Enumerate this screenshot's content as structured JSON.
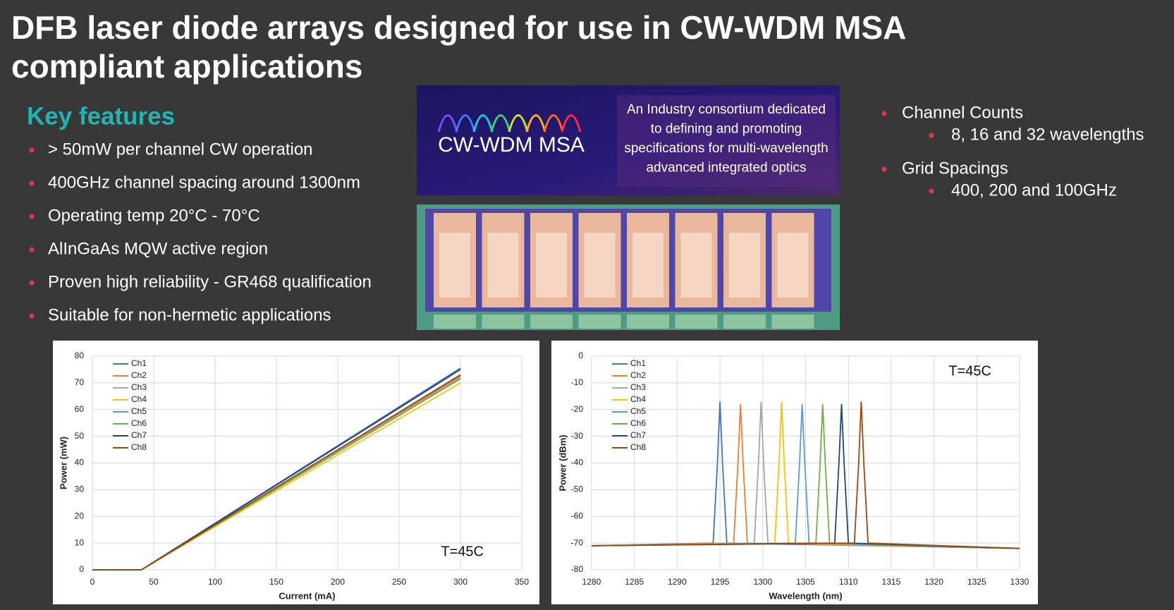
{
  "title": "DFB laser diode arrays designed for use in CW-WDM MSA compliant applications",
  "features": {
    "heading": "Key features",
    "items": [
      "> 50mW per channel CW operation",
      "400GHz channel spacing around 1300nm",
      "Operating temp 20°C - 70°C",
      "AlInGaAs MQW active region",
      "Proven high reliability - GR468 qualification",
      "Suitable for non-hermetic applications"
    ]
  },
  "specs": [
    {
      "text": "Channel Counts",
      "sub": "8, 16 and 32 wavelengths"
    },
    {
      "text": "Grid Spacings",
      "sub": "400, 200 and 100GHz"
    }
  ],
  "banner": {
    "logo": "CW-WDM MSA",
    "lines": [
      "An Industry consortium dedicated",
      "to defining and promoting",
      "specifications for multi-wavelength",
      "advanced integrated optics"
    ]
  },
  "chart_data": [
    {
      "type": "line",
      "xlabel": "Current (mA)",
      "ylabel": "Power (mW)",
      "annotation": "T=45C",
      "x": [
        0,
        40,
        300
      ],
      "xlim": [
        0,
        350
      ],
      "xticks": [
        0,
        50,
        100,
        150,
        200,
        250,
        300,
        350
      ],
      "ylim": [
        0,
        80
      ],
      "yticks": [
        0,
        10,
        20,
        30,
        40,
        50,
        60,
        70,
        80
      ],
      "grid": true,
      "series": [
        {
          "name": "Ch1",
          "color": "#4472c4",
          "values": [
            0,
            0,
            75.5
          ]
        },
        {
          "name": "Ch2",
          "color": "#ed7d31",
          "values": [
            0,
            0,
            72.5
          ]
        },
        {
          "name": "Ch3",
          "color": "#a5a5a5",
          "values": [
            0,
            0,
            72
          ]
        },
        {
          "name": "Ch4",
          "color": "#ffc000",
          "values": [
            0,
            0,
            70
          ]
        },
        {
          "name": "Ch5",
          "color": "#5b9bd5",
          "values": [
            0,
            0,
            73
          ]
        },
        {
          "name": "Ch6",
          "color": "#70ad47",
          "values": [
            0,
            0,
            71.5
          ]
        },
        {
          "name": "Ch7",
          "color": "#264478",
          "values": [
            0,
            0,
            75
          ]
        },
        {
          "name": "Ch8",
          "color": "#9e480e",
          "values": [
            0,
            0,
            73
          ]
        }
      ]
    },
    {
      "type": "line",
      "xlabel": "Wavelength (nm)",
      "ylabel": "Power (dBm)",
      "annotation": "T=45C",
      "xlim": [
        1280,
        1330
      ],
      "xticks": [
        1280,
        1285,
        1290,
        1295,
        1300,
        1305,
        1310,
        1315,
        1320,
        1325,
        1330
      ],
      "ylim": [
        -80,
        0
      ],
      "yticks": [
        -80,
        -70,
        -60,
        -50,
        -40,
        -30,
        -20,
        -10,
        0
      ],
      "grid": true,
      "series": [
        {
          "name": "Ch1",
          "color": "#4472c4",
          "x": [
            1280,
            1294.2,
            1294.7,
            1295,
            1295.3,
            1295.8,
            1330
          ],
          "values": [
            -71,
            -70,
            -40,
            -17,
            -40,
            -70,
            -72
          ]
        },
        {
          "name": "Ch2",
          "color": "#ed7d31",
          "x": [
            1280,
            1296.6,
            1297.1,
            1297.4,
            1297.7,
            1298.2,
            1330
          ],
          "values": [
            -71,
            -70,
            -40,
            -18,
            -40,
            -70,
            -72
          ]
        },
        {
          "name": "Ch3",
          "color": "#a5a5a5",
          "x": [
            1280,
            1299,
            1299.5,
            1299.8,
            1300.1,
            1300.6,
            1330
          ],
          "values": [
            -71,
            -70,
            -40,
            -17,
            -40,
            -70,
            -72
          ]
        },
        {
          "name": "Ch4",
          "color": "#ffc000",
          "x": [
            1280,
            1301.4,
            1301.9,
            1302.2,
            1302.5,
            1303,
            1330
          ],
          "values": [
            -71,
            -70,
            -40,
            -17,
            -40,
            -70,
            -72
          ]
        },
        {
          "name": "Ch5",
          "color": "#5b9bd5",
          "x": [
            1280,
            1303.8,
            1304.3,
            1304.6,
            1304.9,
            1305.4,
            1330
          ],
          "values": [
            -71,
            -70,
            -40,
            -18,
            -40,
            -70,
            -72
          ]
        },
        {
          "name": "Ch6",
          "color": "#70ad47",
          "x": [
            1280,
            1306.2,
            1306.7,
            1307,
            1307.3,
            1307.8,
            1330
          ],
          "values": [
            -71,
            -70,
            -40,
            -18,
            -40,
            -70,
            -72
          ]
        },
        {
          "name": "Ch7",
          "color": "#264478",
          "x": [
            1280,
            1308.4,
            1308.9,
            1309.2,
            1309.5,
            1310,
            1330
          ],
          "values": [
            -71,
            -70,
            -40,
            -18,
            -40,
            -70,
            -72
          ]
        },
        {
          "name": "Ch8",
          "color": "#9e480e",
          "x": [
            1280,
            1310.7,
            1311.2,
            1311.5,
            1311.8,
            1312.3,
            1330
          ],
          "values": [
            -71,
            -70,
            -40,
            -17,
            -40,
            -70,
            -72
          ]
        }
      ]
    }
  ]
}
